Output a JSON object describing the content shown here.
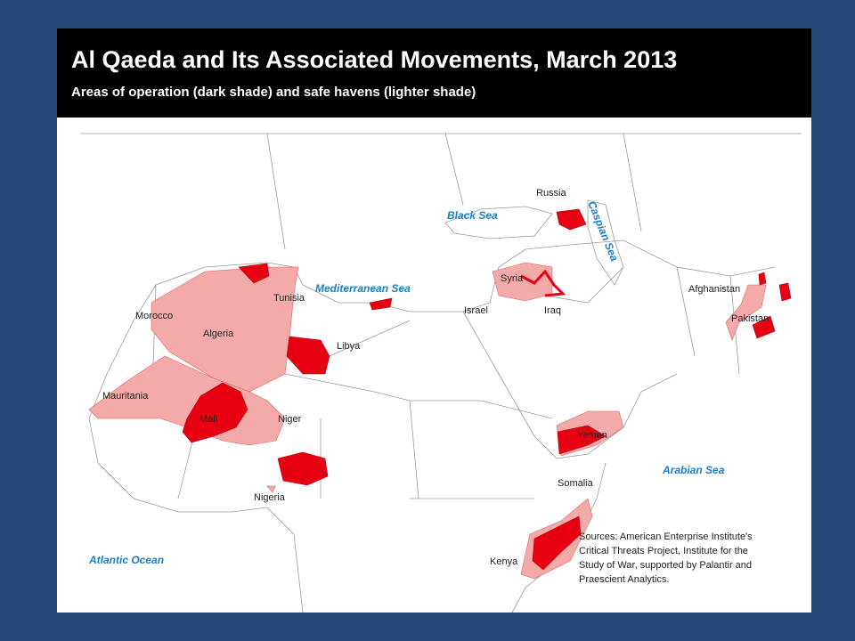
{
  "header": {
    "title": "Al Qaeda and Its Associated Movements, March 2013",
    "subtitle": "Areas of operation (dark shade) and safe havens (lighter shade)"
  },
  "countries": [
    "Russia",
    "Tunisia",
    "Morocco",
    "Algeria",
    "Libya",
    "Mauritania",
    "Mali",
    "Niger",
    "Nigeria",
    "Syria",
    "Israel",
    "Iraq",
    "Afghanistan",
    "Pakistan",
    "Yemen",
    "Somalia",
    "Kenya"
  ],
  "seas": [
    "Black Sea",
    "Caspian Sea",
    "Mediterranean Sea",
    "Arabian Sea",
    "Atlantic Ocean"
  ],
  "sources": [
    "Sources: American Enterprise Institute's",
    "Critical Threats Project, Institute for the",
    "Study of War, supported by Palantir and",
    "Praescient Analytics."
  ]
}
